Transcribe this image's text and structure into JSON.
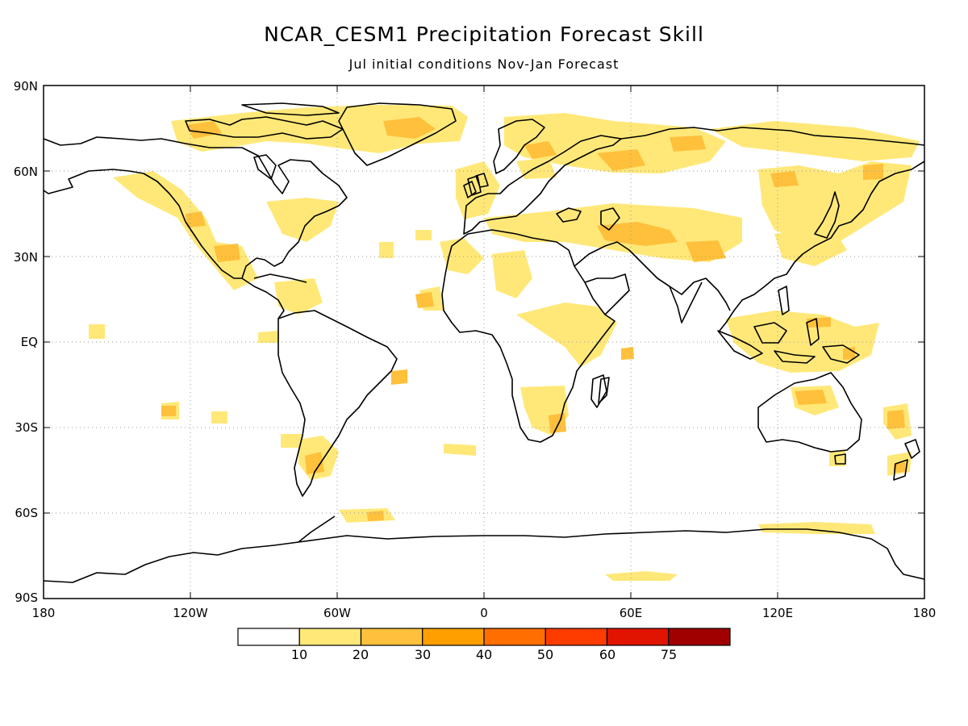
{
  "title": "NCAR_CESM1 Precipitation Forecast Skill",
  "subtitle": "Jul initial conditions   Nov-Jan Forecast",
  "lat_labels": [
    "90N",
    "60N",
    "30N",
    "EQ",
    "30S",
    "60S",
    "90S"
  ],
  "lon_labels": [
    "180",
    "120W",
    "60W",
    "0",
    "60E",
    "120E",
    "180"
  ],
  "colorbar": {
    "colors": [
      "#ffffff",
      "#ffe878",
      "#ffc03c",
      "#ffa000",
      "#ff6e00",
      "#ff3c00",
      "#e01400",
      "#a00000"
    ],
    "labels": [
      "10",
      "20",
      "30",
      "40",
      "50",
      "60",
      "75"
    ]
  },
  "map_data": {
    "type": "global skill map (filled contours over coastlines)",
    "projection": "cylindrical equidistant",
    "lon_range": [
      -180,
      180
    ],
    "lat_range": [
      -90,
      90
    ],
    "grid": "dotted at 60° lon / 30° lat"
  }
}
